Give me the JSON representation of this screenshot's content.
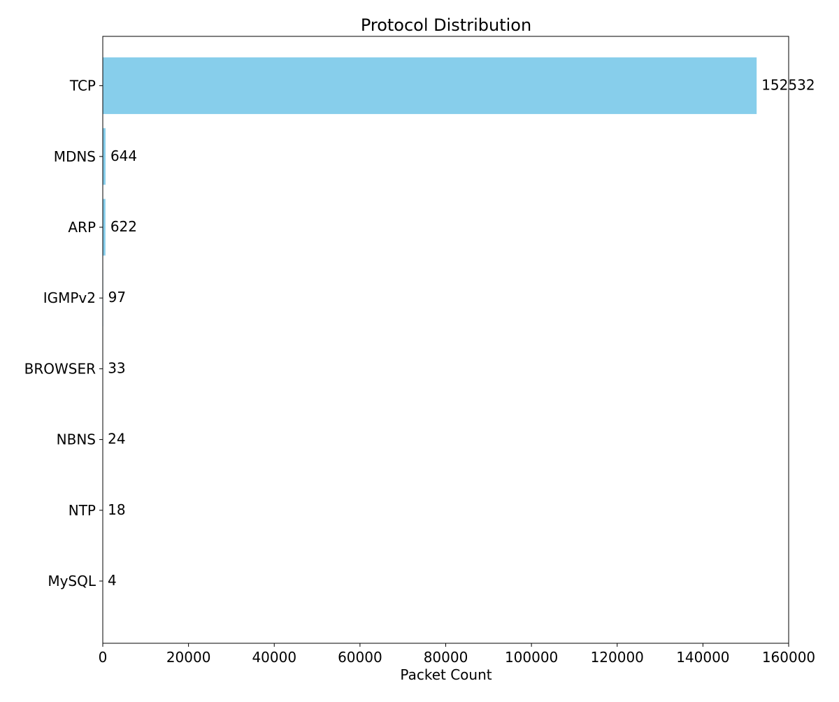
{
  "chart_data": {
    "type": "bar",
    "orientation": "horizontal",
    "title": "Protocol Distribution",
    "xlabel": "Packet Count",
    "ylabel": "",
    "categories": [
      "TCP",
      "MDNS",
      "ARP",
      "IGMPv2",
      "BROWSER",
      "NBNS",
      "NTP",
      "MySQL"
    ],
    "values": [
      152532,
      644,
      622,
      97,
      33,
      24,
      18,
      4
    ],
    "data_labels": [
      "152532",
      "644",
      "622",
      "97",
      "33",
      "24",
      "18",
      "4"
    ],
    "xlim": [
      0,
      160000
    ],
    "xticks": [
      0,
      20000,
      40000,
      60000,
      80000,
      100000,
      120000,
      140000,
      160000
    ],
    "xtick_labels": [
      "0",
      "20000",
      "40000",
      "60000",
      "80000",
      "100000",
      "120000",
      "140000",
      "160000"
    ],
    "bar_color": "#87CEEB",
    "grid": false,
    "legend": "none"
  }
}
